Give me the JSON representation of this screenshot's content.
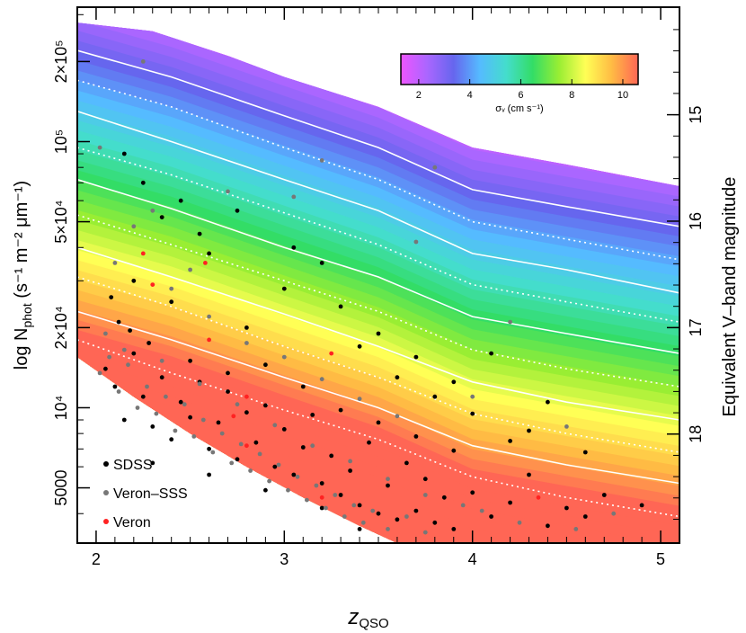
{
  "chart_data": {
    "type": "scatter",
    "title": "",
    "xlabel": "z",
    "xlabel_sub": "QSO",
    "ylabel_left_prefix": "log N",
    "ylabel_left_sub": "phot",
    "ylabel_left_units": " (s⁻¹ m⁻² μm⁻¹)",
    "ylabel_right": "Equivalent V–band magnitude",
    "xlim": [
      1.9,
      5.1
    ],
    "ylim": [
      3100,
      320000
    ],
    "y_scale": "log",
    "x_ticks": [
      {
        "value": 2,
        "label": "2"
      },
      {
        "value": 3,
        "label": "3"
      },
      {
        "value": 4,
        "label": "4"
      },
      {
        "value": 5,
        "label": "5"
      }
    ],
    "y_ticks_left": [
      {
        "value": 5000,
        "label": "5000"
      },
      {
        "value": 10000,
        "label": "10⁴"
      },
      {
        "value": 20000,
        "label": "2×10⁴"
      },
      {
        "value": 50000,
        "label": "5×10⁴"
      },
      {
        "value": 100000,
        "label": "10⁵"
      },
      {
        "value": 200000,
        "label": "2×10⁵"
      }
    ],
    "y_ticks_right": [
      {
        "value": 15,
        "label": "15"
      },
      {
        "value": 16,
        "label": "16"
      },
      {
        "value": 17,
        "label": "17"
      },
      {
        "value": 18,
        "label": "18"
      }
    ],
    "colorbar": {
      "label": "σᵥ (cm s⁻¹)",
      "range": [
        1.3,
        10.6
      ],
      "ticks": [
        "2",
        "4",
        "6",
        "8",
        "10"
      ],
      "tick_values": [
        2,
        4,
        6,
        8,
        10
      ],
      "colors": [
        "#ee55ff",
        "#aa66ff",
        "#6666ee",
        "#55bbff",
        "#44ddcc",
        "#33dd66",
        "#99ee33",
        "#ffff55",
        "#ffbb44",
        "#ff6655"
      ]
    },
    "upper_envelope": [
      [
        1.9,
        280000
      ],
      [
        2.3,
        260000
      ],
      [
        2.7,
        210000
      ],
      [
        3.0,
        175000
      ],
      [
        3.5,
        135000
      ],
      [
        4.0,
        95000
      ],
      [
        4.5,
        82000
      ],
      [
        5.1,
        68000
      ]
    ],
    "lower_envelope": [
      [
        1.9,
        15500
      ],
      [
        2.2,
        11000
      ],
      [
        2.5,
        8000
      ],
      [
        2.8,
        6000
      ],
      [
        3.1,
        4600
      ],
      [
        3.4,
        3600
      ],
      [
        3.6,
        3100
      ]
    ],
    "contours": [
      {
        "style": "solid",
        "points": [
          [
            1.9,
            220000
          ],
          [
            2.4,
            175000
          ],
          [
            3.0,
            125000
          ],
          [
            3.5,
            95000
          ],
          [
            4.0,
            66000
          ],
          [
            4.5,
            57000
          ],
          [
            5.1,
            48000
          ]
        ]
      },
      {
        "style": "dotted",
        "points": [
          [
            1.9,
            170000
          ],
          [
            2.4,
            135000
          ],
          [
            3.0,
            95000
          ],
          [
            3.5,
            72000
          ],
          [
            4.0,
            50000
          ],
          [
            4.5,
            43000
          ],
          [
            5.1,
            36000
          ]
        ]
      },
      {
        "style": "solid",
        "points": [
          [
            1.9,
            130000
          ],
          [
            2.4,
            100000
          ],
          [
            3.0,
            72000
          ],
          [
            3.5,
            55000
          ],
          [
            4.0,
            38000
          ],
          [
            4.5,
            33000
          ],
          [
            5.1,
            27000
          ]
        ]
      },
      {
        "style": "dotted",
        "points": [
          [
            1.9,
            95000
          ],
          [
            2.4,
            75000
          ],
          [
            3.0,
            54000
          ],
          [
            3.5,
            41000
          ],
          [
            4.0,
            29000
          ],
          [
            4.5,
            25000
          ],
          [
            5.1,
            21000
          ]
        ]
      },
      {
        "style": "solid",
        "points": [
          [
            1.9,
            72000
          ],
          [
            2.4,
            56000
          ],
          [
            3.0,
            40000
          ],
          [
            3.5,
            31000
          ],
          [
            4.0,
            22000
          ],
          [
            4.5,
            19000
          ],
          [
            5.1,
            16000
          ]
        ]
      },
      {
        "style": "dotted",
        "points": [
          [
            1.9,
            53000
          ],
          [
            2.4,
            41000
          ],
          [
            3.0,
            30000
          ],
          [
            3.5,
            23000
          ],
          [
            4.0,
            16500
          ],
          [
            4.5,
            14000
          ],
          [
            5.1,
            12000
          ]
        ]
      },
      {
        "style": "solid",
        "points": [
          [
            1.9,
            40000
          ],
          [
            2.4,
            31000
          ],
          [
            3.0,
            22500
          ],
          [
            3.5,
            17000
          ],
          [
            4.0,
            12500
          ],
          [
            4.5,
            10500
          ],
          [
            5.1,
            9000
          ]
        ]
      },
      {
        "style": "dotted",
        "points": [
          [
            1.9,
            31000
          ],
          [
            2.4,
            24000
          ],
          [
            3.0,
            17000
          ],
          [
            3.5,
            13000
          ],
          [
            4.0,
            9500
          ],
          [
            4.5,
            8000
          ],
          [
            5.1,
            6800
          ]
        ]
      },
      {
        "style": "solid",
        "points": [
          [
            1.9,
            23000
          ],
          [
            2.4,
            18000
          ],
          [
            3.0,
            13000
          ],
          [
            3.5,
            10000
          ],
          [
            4.0,
            7200
          ],
          [
            4.5,
            6100
          ],
          [
            5.1,
            5200
          ]
        ]
      },
      {
        "style": "dotted",
        "points": [
          [
            1.9,
            18000
          ],
          [
            2.4,
            13500
          ],
          [
            3.0,
            9800
          ],
          [
            3.5,
            7600
          ],
          [
            4.0,
            5500
          ],
          [
            4.5,
            4600
          ],
          [
            5.1,
            3900
          ]
        ]
      }
    ],
    "series": [
      {
        "name": "SDSS",
        "color": "#000000",
        "points": [
          [
            2.05,
            14000
          ],
          [
            2.1,
            12000
          ],
          [
            2.15,
            9000
          ],
          [
            2.2,
            16000
          ],
          [
            2.25,
            11000
          ],
          [
            2.3,
            8500
          ],
          [
            2.35,
            13000
          ],
          [
            2.4,
            7600
          ],
          [
            2.45,
            10500
          ],
          [
            2.5,
            9200
          ],
          [
            2.55,
            12500
          ],
          [
            2.6,
            7000
          ],
          [
            2.65,
            8800
          ],
          [
            2.7,
            11500
          ],
          [
            2.75,
            6400
          ],
          [
            2.8,
            9600
          ],
          [
            2.85,
            7400
          ],
          [
            2.9,
            10200
          ],
          [
            2.95,
            6000
          ],
          [
            3.0,
            8300
          ],
          [
            3.05,
            5600
          ],
          [
            3.1,
            7100
          ],
          [
            3.15,
            9400
          ],
          [
            3.2,
            5200
          ],
          [
            3.25,
            6600
          ],
          [
            3.3,
            4700
          ],
          [
            3.35,
            5800
          ],
          [
            3.4,
            4300
          ],
          [
            3.45,
            7400
          ],
          [
            3.5,
            4000
          ],
          [
            3.55,
            5100
          ],
          [
            3.6,
            3800
          ],
          [
            3.65,
            6200
          ],
          [
            3.7,
            4100
          ],
          [
            3.75,
            5400
          ],
          [
            3.8,
            3700
          ],
          [
            3.85,
            4600
          ],
          [
            3.9,
            3500
          ],
          [
            4.0,
            4800
          ],
          [
            4.1,
            3900
          ],
          [
            4.2,
            4400
          ],
          [
            4.3,
            5600
          ],
          [
            4.4,
            3600
          ],
          [
            4.5,
            4200
          ],
          [
            4.6,
            3900
          ],
          [
            4.7,
            4700
          ],
          [
            4.9,
            4300
          ],
          [
            2.2,
            30000
          ],
          [
            2.4,
            25000
          ],
          [
            2.6,
            38000
          ],
          [
            2.8,
            20000
          ],
          [
            3.0,
            28000
          ],
          [
            3.2,
            35000
          ],
          [
            3.4,
            17000
          ],
          [
            3.6,
            13000
          ],
          [
            3.8,
            11000
          ],
          [
            4.0,
            9500
          ],
          [
            4.2,
            7500
          ],
          [
            4.4,
            10500
          ],
          [
            2.25,
            70000
          ],
          [
            2.35,
            52000
          ],
          [
            2.55,
            45000
          ],
          [
            2.75,
            55000
          ],
          [
            3.05,
            40000
          ],
          [
            3.3,
            24000
          ],
          [
            3.5,
            19000
          ],
          [
            3.7,
            15500
          ],
          [
            3.9,
            12500
          ],
          [
            4.1,
            16000
          ],
          [
            4.3,
            8200
          ],
          [
            4.6,
            6800
          ],
          [
            2.15,
            90000
          ],
          [
            2.45,
            60000
          ],
          [
            2.12,
            21000
          ],
          [
            2.28,
            17500
          ],
          [
            2.5,
            15000
          ],
          [
            2.7,
            13500
          ],
          [
            2.9,
            14500
          ],
          [
            3.1,
            12000
          ],
          [
            3.3,
            9800
          ],
          [
            3.5,
            8800
          ],
          [
            3.7,
            7800
          ],
          [
            3.9,
            6900
          ],
          [
            2.3,
            6200
          ],
          [
            2.6,
            5600
          ],
          [
            2.9,
            4900
          ],
          [
            3.2,
            4200
          ],
          [
            3.4,
            3500
          ],
          [
            2.08,
            26000
          ],
          [
            2.18,
            19500
          ]
        ]
      },
      {
        "name": "Veron–SSS",
        "color": "#777777",
        "points": [
          [
            2.02,
            13500
          ],
          [
            2.07,
            15500
          ],
          [
            2.12,
            11500
          ],
          [
            2.17,
            14500
          ],
          [
            2.22,
            10000
          ],
          [
            2.27,
            12000
          ],
          [
            2.32,
            9500
          ],
          [
            2.37,
            11000
          ],
          [
            2.42,
            8200
          ],
          [
            2.47,
            10300
          ],
          [
            2.52,
            7800
          ],
          [
            2.57,
            9000
          ],
          [
            2.62,
            6800
          ],
          [
            2.67,
            8000
          ],
          [
            2.72,
            6200
          ],
          [
            2.77,
            7300
          ],
          [
            2.82,
            5800
          ],
          [
            2.87,
            6700
          ],
          [
            2.92,
            5300
          ],
          [
            2.97,
            6100
          ],
          [
            3.02,
            4900
          ],
          [
            3.07,
            5500
          ],
          [
            3.12,
            4500
          ],
          [
            3.17,
            5100
          ],
          [
            3.22,
            4200
          ],
          [
            3.27,
            4700
          ],
          [
            3.32,
            3900
          ],
          [
            3.37,
            4300
          ],
          [
            3.42,
            3700
          ],
          [
            3.47,
            4100
          ],
          [
            3.55,
            3500
          ],
          [
            3.65,
            3900
          ],
          [
            3.75,
            3400
          ],
          [
            4.05,
            4100
          ],
          [
            4.25,
            3700
          ],
          [
            4.55,
            3500
          ],
          [
            4.75,
            4000
          ],
          [
            2.02,
            95000
          ],
          [
            2.25,
            200000
          ],
          [
            2.3,
            55000
          ],
          [
            2.7,
            65000
          ],
          [
            3.05,
            62000
          ],
          [
            3.2,
            85000
          ],
          [
            3.8,
            80000
          ],
          [
            3.7,
            42000
          ],
          [
            4.0,
            11000
          ],
          [
            4.2,
            21000
          ],
          [
            4.5,
            8500
          ],
          [
            2.1,
            35000
          ],
          [
            2.4,
            28000
          ],
          [
            2.6,
            22000
          ],
          [
            2.8,
            17500
          ],
          [
            3.0,
            15500
          ],
          [
            3.2,
            12800
          ],
          [
            3.4,
            10800
          ],
          [
            3.6,
            9300
          ],
          [
            2.05,
            19000
          ],
          [
            2.15,
            16500
          ],
          [
            2.35,
            15000
          ],
          [
            2.55,
            12300
          ],
          [
            2.75,
            10300
          ],
          [
            2.95,
            8600
          ],
          [
            3.15,
            7200
          ],
          [
            3.35,
            6300
          ],
          [
            3.55,
            5400
          ],
          [
            3.75,
            4700
          ],
          [
            3.95,
            4300
          ],
          [
            2.2,
            48000
          ],
          [
            2.5,
            33000
          ]
        ]
      },
      {
        "name": "Veron",
        "color": "#ff2222",
        "points": [
          [
            2.25,
            38000
          ],
          [
            2.3,
            29000
          ],
          [
            2.58,
            35000
          ],
          [
            2.6,
            18000
          ],
          [
            2.8,
            11000
          ],
          [
            2.8,
            7200
          ],
          [
            3.2,
            4600
          ],
          [
            3.25,
            16000
          ],
          [
            4.35,
            4600
          ],
          [
            2.73,
            9300
          ]
        ]
      }
    ],
    "legend": [
      {
        "label": "SDSS",
        "color": "#000000"
      },
      {
        "label": "Veron–SSS",
        "color": "#777777"
      },
      {
        "label": "Veron",
        "color": "#ff2222"
      }
    ],
    "legend_position": "bottom-left",
    "grid": false
  }
}
